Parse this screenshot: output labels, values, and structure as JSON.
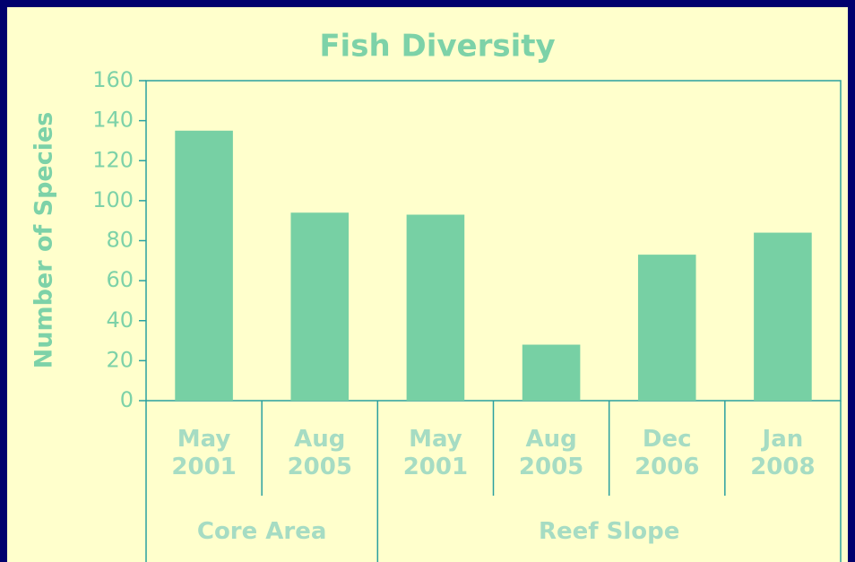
{
  "chart_data": {
    "type": "bar",
    "title": "Fish Diversity",
    "y_label": "Number  of  Species",
    "groups": [
      {
        "name": "Core Area",
        "categories": [
          "May 2001",
          "Aug 2005"
        ],
        "values": [
          135,
          94
        ]
      },
      {
        "name": "Reef Slope",
        "categories": [
          "May 2001",
          "Aug 2005",
          "Dec 2006",
          "Jan 2008"
        ],
        "values": [
          93,
          28,
          73,
          84
        ]
      }
    ],
    "color": "#77d0a4",
    "ylim": [
      0,
      160
    ],
    "yticks": [
      0,
      20,
      40,
      60,
      80,
      100,
      120,
      140,
      160
    ],
    "grid": false
  }
}
